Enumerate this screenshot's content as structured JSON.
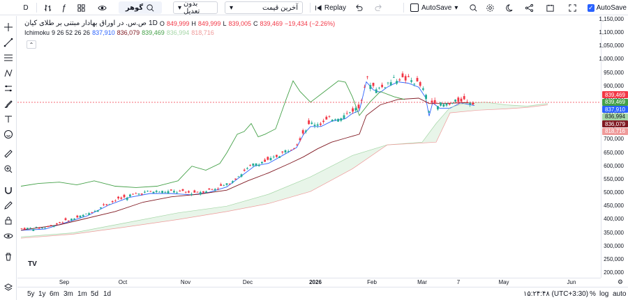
{
  "toolbar": {
    "interval": "D",
    "symbol_search": "گوهر",
    "adjustment": "بدون تعدیل",
    "price_type": "آخرین قیمت",
    "replay": "Replay",
    "autosave_button": "AutoSave",
    "autosave_checkbox": "AutoSave"
  },
  "legend": {
    "title": "ص.س. در اوراق بهادار مبتنی بر طلای کیان",
    "interval": "1D",
    "open_label": "O",
    "open": "849,999",
    "high_label": "H",
    "high": "849,999",
    "low_label": "L",
    "low": "839,005",
    "close_label": "C",
    "close": "839,469",
    "change": "−19,434 (−2.26%)",
    "indicator_name": "Ichimoku",
    "indicator_params": "9 26 52 26 26",
    "ind_values": [
      "837,910",
      "836,079",
      "839,469",
      "836,994",
      "818,716"
    ]
  },
  "colors": {
    "up": "#f23645",
    "down": "#22ab94",
    "conversion": "#2962ff",
    "base": "#801922",
    "lagging": "#43a047",
    "lead_a": "#a5d6a7",
    "lead_b": "#ef9a9a"
  },
  "price_axis": {
    "ticks": [
      "1,150,000",
      "1,100,000",
      "1,050,000",
      "1,000,000",
      "950,000",
      "900,000",
      "850,000",
      "800,000",
      "750,000",
      "700,000",
      "650,000",
      "600,000",
      "550,000",
      "500,000",
      "450,000",
      "400,000",
      "350,000",
      "300,000",
      "250,000",
      "200,000"
    ],
    "badges": [
      {
        "value": "839,469",
        "color": "#f23645"
      },
      {
        "value": "839,469",
        "color": "#43a047"
      },
      {
        "value": "837,910",
        "color": "#2962ff"
      },
      {
        "value": "836,994",
        "color": "#a5d6a7"
      },
      {
        "value": "836,079",
        "color": "#801922"
      },
      {
        "value": "818,716",
        "color": "#ef9a9a"
      }
    ]
  },
  "time_axis": {
    "labels": [
      "Sep",
      "Oct",
      "Nov",
      "Dec",
      "2026",
      "Feb",
      "Mar",
      "7",
      "May",
      "Jun"
    ]
  },
  "ranges": [
    "5y",
    "1y",
    "6m",
    "3m",
    "1m",
    "5d",
    "1d"
  ],
  "clock": "۱۵:۲۴:۴۸ (UTC+3:30)",
  "scale_options": [
    "%",
    "log",
    "auto"
  ],
  "watermark": "TV"
}
